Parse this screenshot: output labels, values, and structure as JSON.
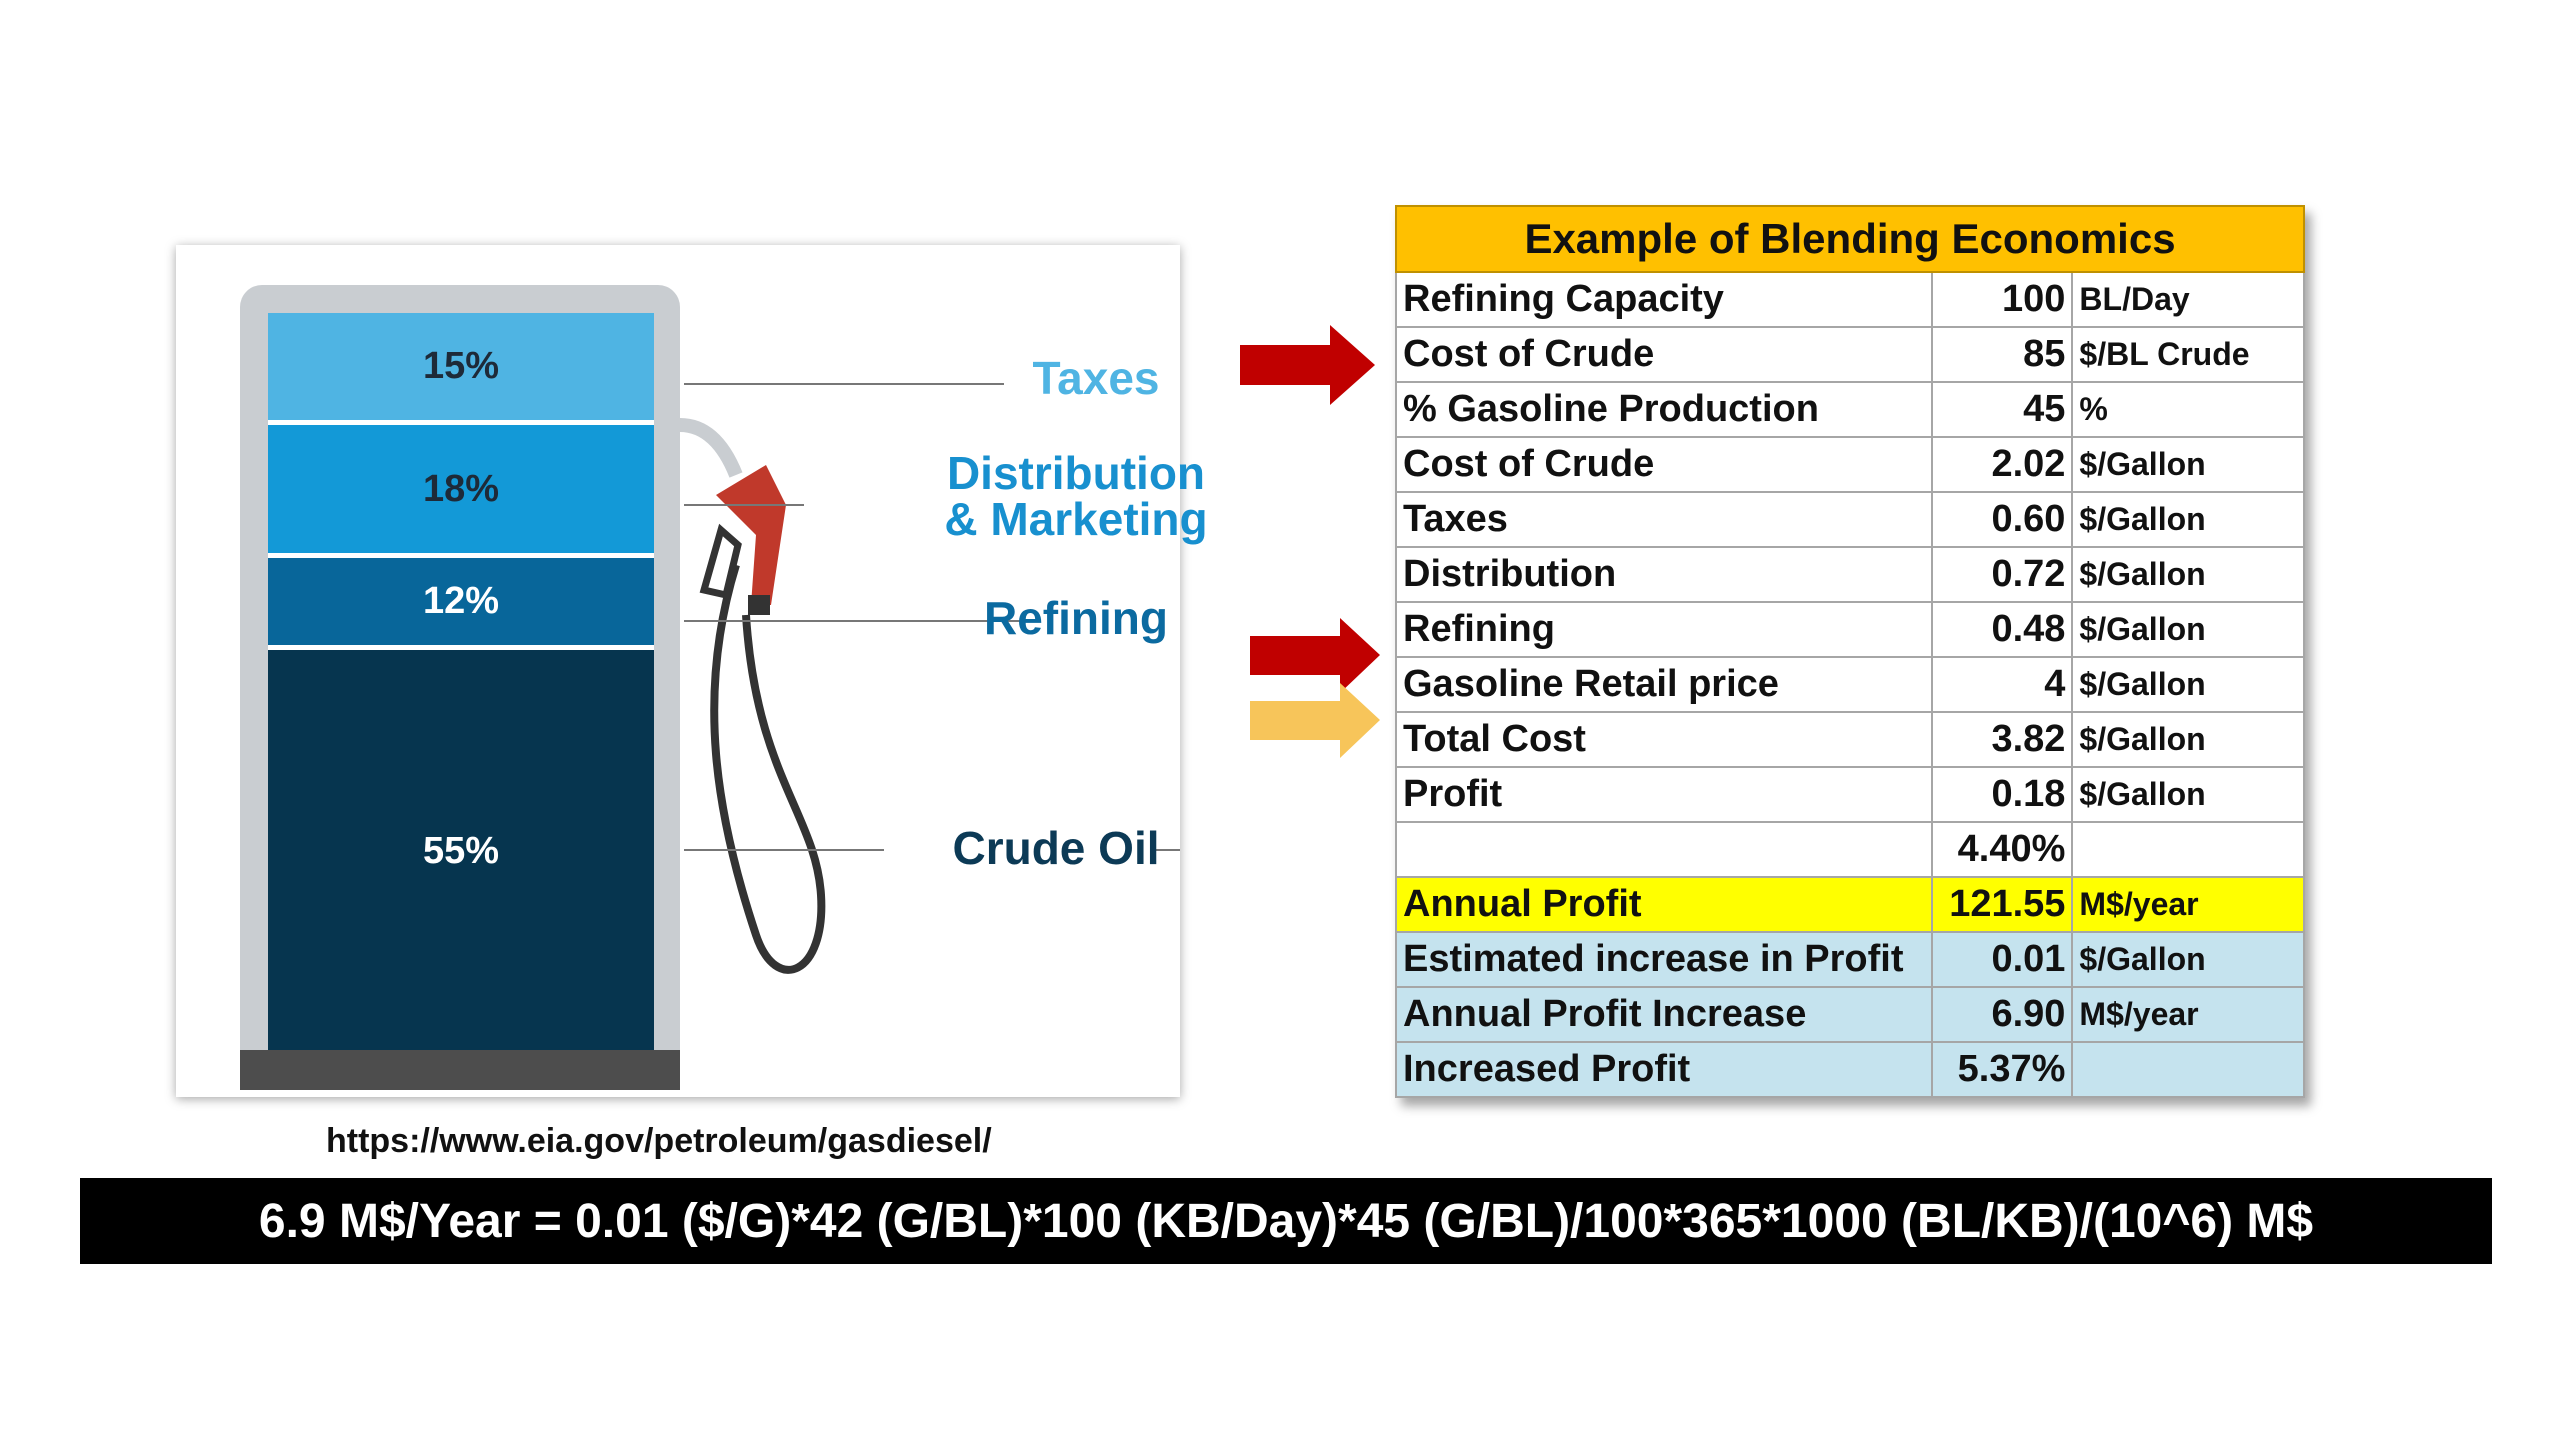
{
  "pump": {
    "segments": {
      "taxes": "15%",
      "distribution": "18%",
      "refining": "12%",
      "crude": "55%"
    },
    "labels": {
      "taxes": "Taxes",
      "distribution_1": "Distribution",
      "distribution_2": "& Marketing",
      "refining": "Refining",
      "crude": "Crude Oil"
    },
    "colors": {
      "taxes": "#4fb4e3",
      "distribution": "#1399d7",
      "refining": "#08669a",
      "crude": "#06354f"
    }
  },
  "source": {
    "url": "https://www.eia.gov/petroleum/gasdiesel/"
  },
  "table": {
    "title": "Example of Blending Economics",
    "rows": [
      {
        "label": "Refining Capacity",
        "value": "100",
        "unit": "BL/Day"
      },
      {
        "label": "Cost of Crude",
        "value": "85",
        "unit": "$/BL Crude"
      },
      {
        "label": "% Gasoline Production",
        "value": "45",
        "unit": "%"
      },
      {
        "label": "Cost of Crude",
        "value": "2.02",
        "unit": "$/Gallon"
      },
      {
        "label": "Taxes",
        "value": "0.60",
        "unit": "$/Gallon"
      },
      {
        "label": "Distribution",
        "value": "0.72",
        "unit": "$/Gallon"
      },
      {
        "label": "Refining",
        "value": "0.48",
        "unit": "$/Gallon"
      },
      {
        "label": "Gasoline Retail price",
        "value": "4",
        "unit": "$/Gallon"
      },
      {
        "label": "Total Cost",
        "value": "3.82",
        "unit": "$/Gallon"
      },
      {
        "label": "Profit",
        "value": "0.18",
        "unit": "$/Gallon"
      },
      {
        "label": "",
        "value": "4.40%",
        "unit": ""
      },
      {
        "label": "Annual Profit",
        "value": "121.55",
        "unit": "M$/year"
      },
      {
        "label": "Estimated increase in Profit",
        "value": "0.01",
        "unit": "$/Gallon"
      },
      {
        "label": "Annual Profit Increase",
        "value": "6.90",
        "unit": "M$/year"
      },
      {
        "label": "Increased Profit",
        "value": "5.37%",
        "unit": ""
      }
    ],
    "colors": {
      "title_bg": "#ffc000",
      "highlight_yellow": "#ffff00",
      "highlight_blue": "#c5e3ee"
    }
  },
  "arrows": {
    "colors": {
      "red": "#c00000",
      "gold": "#f7c55a"
    }
  },
  "formula": {
    "text": "6.9 M$/Year = 0.01 ($/G)*42 (G/BL)*100 (KB/Day)*45 (G/BL)/100*365*1000 (BL/KB)/(10^6) M$"
  }
}
